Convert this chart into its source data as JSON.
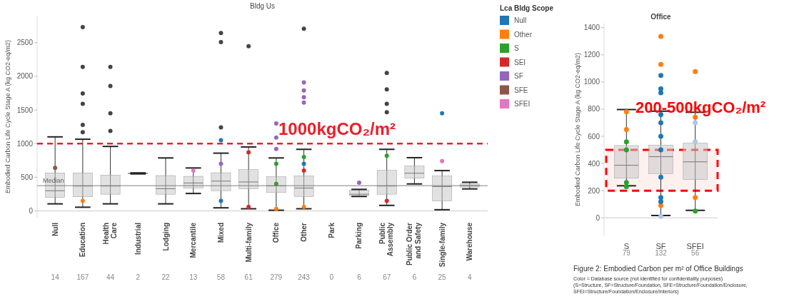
{
  "chart_data": [
    {
      "type": "box",
      "title": "Bldg Us",
      "ylabel": "Embodied Carbon Life Cycle Stage A (kg CO2-eq/m2)",
      "legend_title": "Lca Bldg Scope",
      "legend": "right",
      "marker": "circle",
      "categories": [
        "Null",
        "Education",
        "Health Care",
        "Industrial",
        "Lodging",
        "Mercantile",
        "Mixed",
        "Multi-family",
        "Office",
        "Other",
        "Park",
        "Parking",
        "Public Assembly",
        "Public Order and Safety",
        "Single-family",
        "Warehouse"
      ],
      "boxes": [
        {
          "low": 105,
          "q1": 200,
          "median": 300,
          "q3": 565,
          "high": 1100
        },
        {
          "low": 55,
          "q1": 210,
          "median": 370,
          "q3": 565,
          "high": 1065,
          "outliers": [
            2730,
            2140,
            1745,
            1590,
            1277,
            1170
          ]
        },
        {
          "low": 105,
          "q1": 248,
          "median": 370,
          "q3": 532,
          "high": 958,
          "outliers": [
            2140,
            1855,
            1450,
            1188
          ]
        },
        {
          "low": 550,
          "q1": 552,
          "median": 556,
          "q3": 560,
          "high": 565
        },
        {
          "low": 105,
          "q1": 248,
          "median": 330,
          "q3": 525,
          "high": 787
        },
        {
          "low": 259,
          "q1": 337,
          "median": 415,
          "q3": 514,
          "high": 638
        },
        {
          "low": 46,
          "q1": 301,
          "median": 443,
          "q3": 567,
          "high": 858,
          "outliers": [
            2642,
            2508,
            1241
          ]
        },
        {
          "low": 32,
          "q1": 327,
          "median": 430,
          "q3": 614,
          "high": 950,
          "outliers": [
            2447
          ]
        },
        {
          "low": 10,
          "q1": 273,
          "median": 372,
          "q3": 507,
          "high": 787
        },
        {
          "low": 32,
          "q1": 213,
          "median": 340,
          "q3": 521,
          "high": 915,
          "outliers": [
            2706
          ]
        },
        null,
        {
          "low": 215,
          "q1": 224,
          "median": 248,
          "q3": 309,
          "high": 320
        },
        {
          "low": 82,
          "q1": 248,
          "median": 370,
          "q3": 603,
          "high": 915,
          "outliers": [
            2050,
            1805,
            1590,
            1465
          ]
        },
        {
          "low": 401,
          "q1": 486,
          "median": 560,
          "q3": 667,
          "high": 791
        },
        {
          "low": 18,
          "q1": 149,
          "median": 362,
          "q3": 520,
          "high": 599
        },
        {
          "low": 327,
          "q1": 355,
          "median": 375,
          "q3": 400,
          "high": 426
        }
      ],
      "series": [
        {
          "type": "scatter",
          "name": "Null",
          "color": "#1f77b4",
          "x": [
            "Mixed",
            "Mixed",
            "Single-family",
            "Other"
          ],
          "values": [
            1050,
            150,
            1450,
            700
          ]
        },
        {
          "type": "scatter",
          "name": "Other",
          "color": "#ff7f0e",
          "x": [
            "Office",
            "Education",
            "Other"
          ],
          "values": [
            30,
            150,
            60
          ]
        },
        {
          "type": "scatter",
          "name": "S",
          "color": "#2ca02c",
          "x": [
            "Office",
            "Other",
            "Public Assembly",
            "Office"
          ],
          "values": [
            700,
            800,
            820,
            400
          ]
        },
        {
          "type": "scatter",
          "name": "SEI",
          "color": "#d62728",
          "x": [
            "Multi-family",
            "Public Assembly",
            "Other",
            "Multi-family"
          ],
          "values": [
            870,
            150,
            600,
            60
          ]
        },
        {
          "type": "scatter",
          "name": "SF",
          "color": "#9467bd",
          "x": [
            "Office",
            "Office",
            "Office",
            "Other",
            "Other",
            "Other",
            "Other",
            "Parking",
            "Mixed"
          ],
          "values": [
            1300,
            1090,
            920,
            1910,
            1790,
            1690,
            1610,
            420,
            700
          ]
        },
        {
          "type": "scatter",
          "name": "SFE",
          "color": "#8c564b",
          "x": [
            "Null"
          ],
          "values": [
            640
          ]
        },
        {
          "type": "scatter",
          "name": "SFEI",
          "color": "#e377c2",
          "x": [
            "Single-family",
            "Mercantile"
          ],
          "values": [
            740,
            600
          ]
        }
      ],
      "ylim": [
        -100,
        2900
      ],
      "yticks": [
        0,
        500,
        1000,
        1500,
        2000,
        2500
      ],
      "ref_lines": [
        {
          "axis": "y",
          "value": 375,
          "label": "Median",
          "color": "#7f7f7f",
          "line_style": "solid"
        },
        {
          "axis": "y",
          "value": 1000,
          "label": "1000kgCO₂/m²",
          "color": "#e8202a",
          "line_style": "dashed"
        }
      ],
      "annotations": [
        "14",
        "167",
        "44",
        "2",
        "22",
        "13",
        "58",
        "61",
        "279",
        "243",
        "0",
        "6",
        "67",
        "6",
        "25",
        "4"
      ]
    },
    {
      "type": "box",
      "title": "Office",
      "ylabel": "Embodied Carbon Life Cycle Stage A (kg CO2-eq/m2)",
      "marker": "circle",
      "categories": [
        "S",
        "SF",
        "SFEI"
      ],
      "boxes": [
        {
          "low": 236,
          "q1": 292,
          "median": 387,
          "q3": 532,
          "high": 797
        },
        {
          "low": 17,
          "q1": 326,
          "median": 450,
          "q3": 536,
          "high": 785
        },
        {
          "low": 55,
          "q1": 282,
          "median": 412,
          "q3": 550,
          "high": 777
        }
      ],
      "series": [
        {
          "type": "scatter",
          "color": "#ff7f0e",
          "x": [
            "SF",
            "SF",
            "SFEI",
            "S",
            "S",
            "SFEI",
            "SFEI",
            "SF"
          ],
          "values": [
            1335,
            1129,
            1077,
            780,
            650,
            740,
            150,
            90
          ]
        },
        {
          "type": "scatter",
          "color": "#1f77b4",
          "x": [
            "SF",
            "SF",
            "SF",
            "SF",
            "SF",
            "SF",
            "SF",
            "SF",
            "SF",
            "SF"
          ],
          "values": [
            1048,
            949,
            920,
            760,
            700,
            600,
            500,
            300,
            150,
            120
          ]
        },
        {
          "type": "scatter",
          "color": "#2ca02c",
          "x": [
            "S",
            "S",
            "S",
            "S",
            "SFEI"
          ],
          "values": [
            560,
            500,
            230,
            260,
            50
          ]
        },
        {
          "type": "scatter",
          "color": "#aec7e8",
          "x": [
            "SFEI",
            "SFEI",
            "SF"
          ],
          "values": [
            700,
            560,
            10
          ]
        }
      ],
      "ylim": [
        -130,
        1430
      ],
      "yticks": [
        0,
        200,
        400,
        600,
        800,
        1000,
        1200,
        1400
      ],
      "bands": [
        {
          "axis": "y",
          "from": 200,
          "to": 500,
          "label": "200-500kgCO₂/m²",
          "color": "#ff0000"
        }
      ],
      "annotations": [
        "79",
        "132",
        "56",
        "Figure 2: Embodied Carbon per m² of Office Buildings",
        "Color = Database source (not identified for confidentiality purposes)",
        "(S=Structure, SF=Structure/Foundation, SFE=Structure/Foundation/Enclosure,",
        "SFEI=Structure/Foundation/Enclosure/Interiors)"
      ]
    }
  ]
}
